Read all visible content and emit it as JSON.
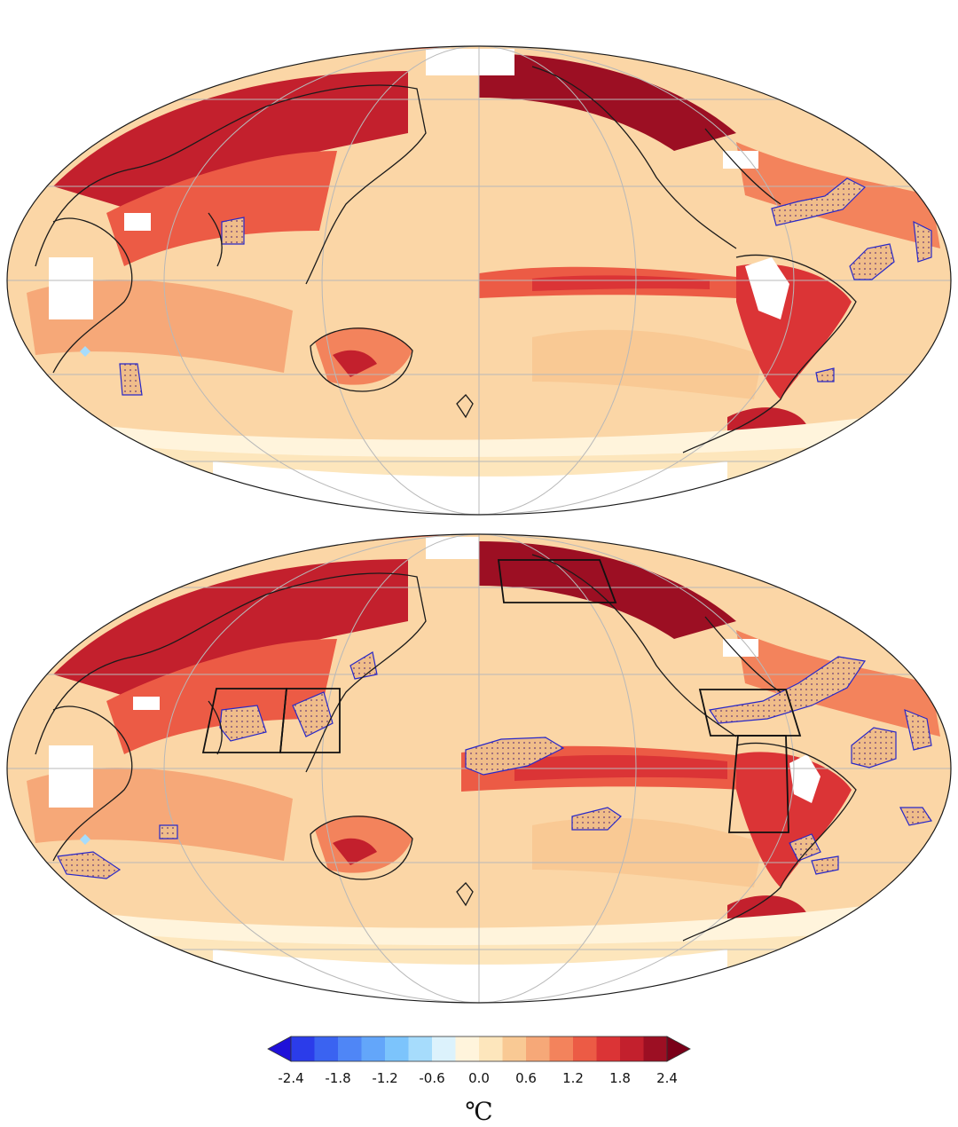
{
  "figure": {
    "panels": [
      {
        "id": "top",
        "boxes": []
      },
      {
        "id": "bottom",
        "boxes": [
          "siberia-box",
          "indochina-box",
          "philippines-box",
          "caribbean-box",
          "amazon-box"
        ]
      }
    ],
    "colors": {
      "land_outline": "#1a1a1a",
      "graticule": "#b8b8b8",
      "no_data": "#ffffff",
      "stipple_outline": "#2828c8",
      "box_outline": "#111111"
    }
  },
  "colorbar": {
    "tick_labels": [
      "-2.4",
      "-1.8",
      "-1.2",
      "-0.6",
      "0.0",
      "0.6",
      "1.2",
      "1.8",
      "2.4"
    ],
    "levels": [
      -2.4,
      -2.1,
      -1.8,
      -1.5,
      -1.2,
      -0.9,
      -0.6,
      -0.3,
      0.0,
      0.3,
      0.6,
      0.9,
      1.2,
      1.5,
      1.8,
      2.1,
      2.4
    ],
    "colors": [
      "#1f10d9",
      "#2b3cea",
      "#3a63f1",
      "#4f86f6",
      "#63a6fa",
      "#7cc4fc",
      "#a6dcfc",
      "#dcf2fc",
      "#fff4dc",
      "#fde6bc",
      "#f9c994",
      "#f6a878",
      "#f3835c",
      "#ec5b45",
      "#db3436",
      "#c3202d",
      "#9c0f23",
      "#7a0019"
    ],
    "unit": "℃"
  }
}
